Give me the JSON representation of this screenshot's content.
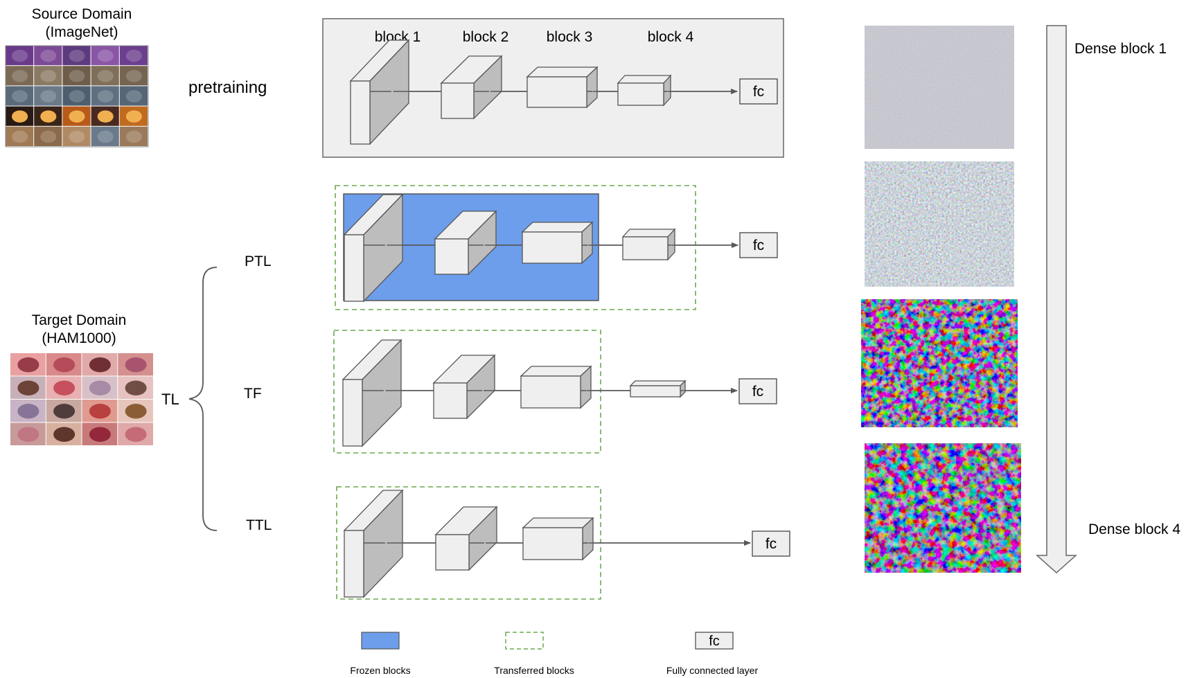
{
  "source_domain": {
    "line1": "Source Domain",
    "line2": "(ImageNet)"
  },
  "target_domain": {
    "line1": "Target Domain",
    "line2": "(HAM1000)"
  },
  "stage_labels": {
    "pretraining": "pretraining",
    "tl": "TL",
    "ptl": "PTL",
    "tf": "TF",
    "ttl": "TTL"
  },
  "block_labels": [
    "block 1",
    "block 2",
    "block 3",
    "block 4"
  ],
  "fc_label": "fc",
  "dense": {
    "top": "Dense block 1",
    "bottom": "Dense block 4"
  },
  "legend": {
    "frozen": "Frozen blocks",
    "transferred": "Transferred blocks",
    "fc_box": "fc",
    "fully_connected": "Fully connected layer"
  },
  "colors": {
    "frozen_fill": "#6d9eeb",
    "transfer_dash": "#6aa84f",
    "cube_front": "#efefef",
    "cube_side": "#bdbdbd",
    "panel_bg": "#efefef",
    "arrow": "#595959"
  },
  "icons": {
    "imagenet_grid": "imagenet-sample-grid",
    "ham_grid": "skin-lesion-sample-grid",
    "feature_maps": "feature-map-visualization"
  }
}
